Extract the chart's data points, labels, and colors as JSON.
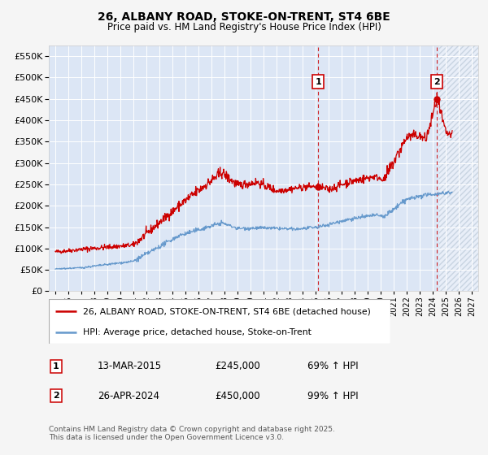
{
  "title": "26, ALBANY ROAD, STOKE-ON-TRENT, ST4 6BE",
  "subtitle": "Price paid vs. HM Land Registry's House Price Index (HPI)",
  "fig_bg_color": "#f0f0f0",
  "plot_bg_color": "#dce6f5",
  "grid_color": "#ffffff",
  "red_color": "#cc0000",
  "blue_color": "#6699cc",
  "ylim": [
    0,
    575000
  ],
  "yticks": [
    0,
    50000,
    100000,
    150000,
    200000,
    250000,
    300000,
    350000,
    400000,
    450000,
    500000,
    550000
  ],
  "xlim_start": 1994.5,
  "xlim_end": 2027.5,
  "xticks": [
    1995,
    1996,
    1997,
    1998,
    1999,
    2000,
    2001,
    2002,
    2003,
    2004,
    2005,
    2006,
    2007,
    2008,
    2009,
    2010,
    2011,
    2012,
    2013,
    2014,
    2015,
    2016,
    2017,
    2018,
    2019,
    2020,
    2021,
    2022,
    2023,
    2024,
    2025,
    2026,
    2027
  ],
  "ann1_x": 2015.2,
  "ann1_y": 245000,
  "ann2_x": 2024.33,
  "ann2_y": 450000,
  "legend_line1": "26, ALBANY ROAD, STOKE-ON-TRENT, ST4 6BE (detached house)",
  "legend_line2": "HPI: Average price, detached house, Stoke-on-Trent",
  "date1": "13-MAR-2015",
  "price1": "£245,000",
  "pct1": "69% ↑ HPI",
  "date2": "26-APR-2024",
  "price2": "£450,000",
  "pct2": "99% ↑ HPI",
  "footer": "Contains HM Land Registry data © Crown copyright and database right 2025.\nThis data is licensed under the Open Government Licence v3.0."
}
